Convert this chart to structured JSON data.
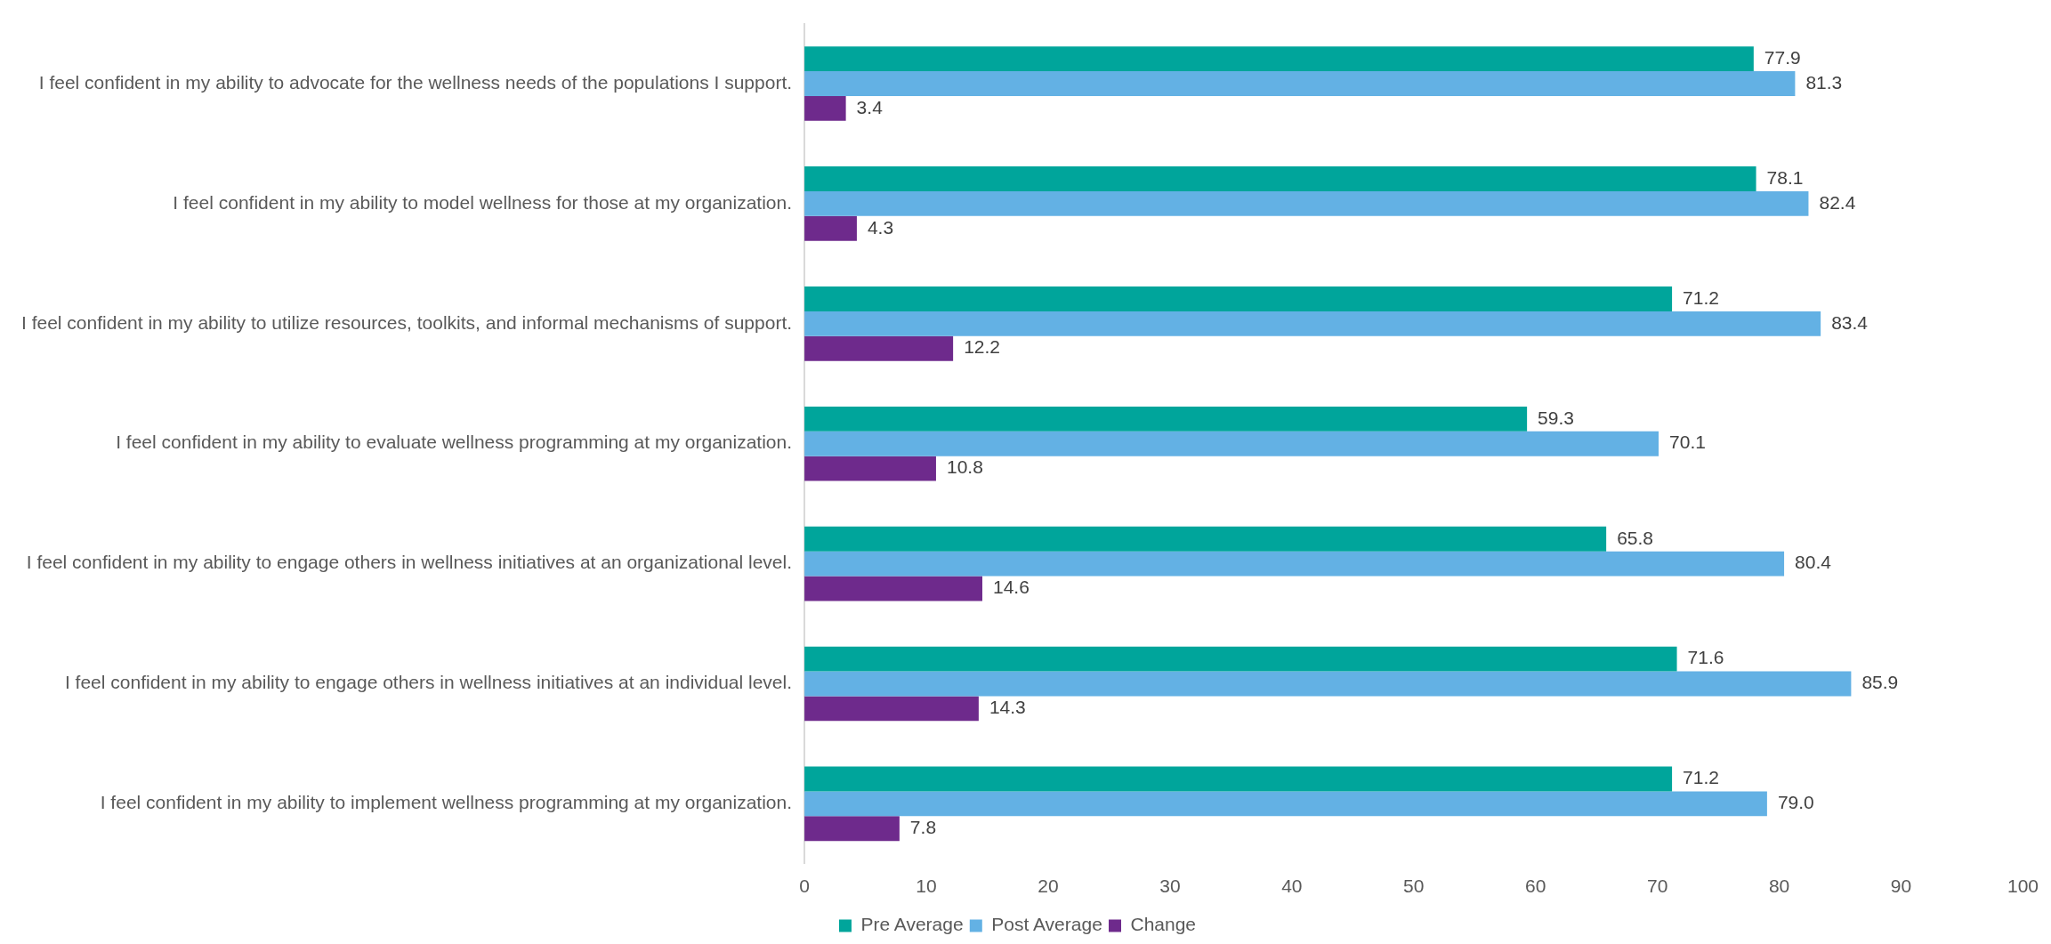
{
  "chart_data": {
    "type": "bar",
    "orientation": "horizontal",
    "categories": [
      "I feel confident in my ability to advocate for the wellness needs of the populations I support.",
      "I feel confident in my ability to model wellness for those at my organization.",
      "I feel confident in my ability to utilize resources, toolkits, and informal mechanisms of support.",
      "I feel confident in my ability to evaluate wellness programming at my organization.",
      "I feel confident in my ability to engage others in wellness initiatives at an organizational level.",
      "I feel confident in my ability to engage others in wellness initiatives at an individual level.",
      "I feel confident in my ability to implement wellness programming at my organization."
    ],
    "series": [
      {
        "name": "Pre Average",
        "color": "#00a59b",
        "values": [
          77.9,
          78.1,
          71.2,
          59.3,
          65.8,
          71.6,
          71.2
        ]
      },
      {
        "name": "Post Average",
        "color": "#63b1e4",
        "values": [
          81.3,
          82.4,
          83.4,
          70.1,
          80.4,
          85.9,
          79.0
        ],
        "value_labels": [
          "81.3",
          "82.4",
          "83.4",
          "70.1",
          "80.4",
          "85.9",
          "79.0"
        ]
      },
      {
        "name": "Change",
        "color": "#6e2a8c",
        "values": [
          3.4,
          4.3,
          12.2,
          10.8,
          14.6,
          14.3,
          7.8
        ]
      }
    ],
    "xlim": [
      0,
      100
    ],
    "xticks": [
      0,
      10,
      20,
      30,
      40,
      50,
      60,
      70,
      80,
      90,
      100
    ],
    "data_labels": true,
    "legend": "bottom",
    "grid": false
  }
}
